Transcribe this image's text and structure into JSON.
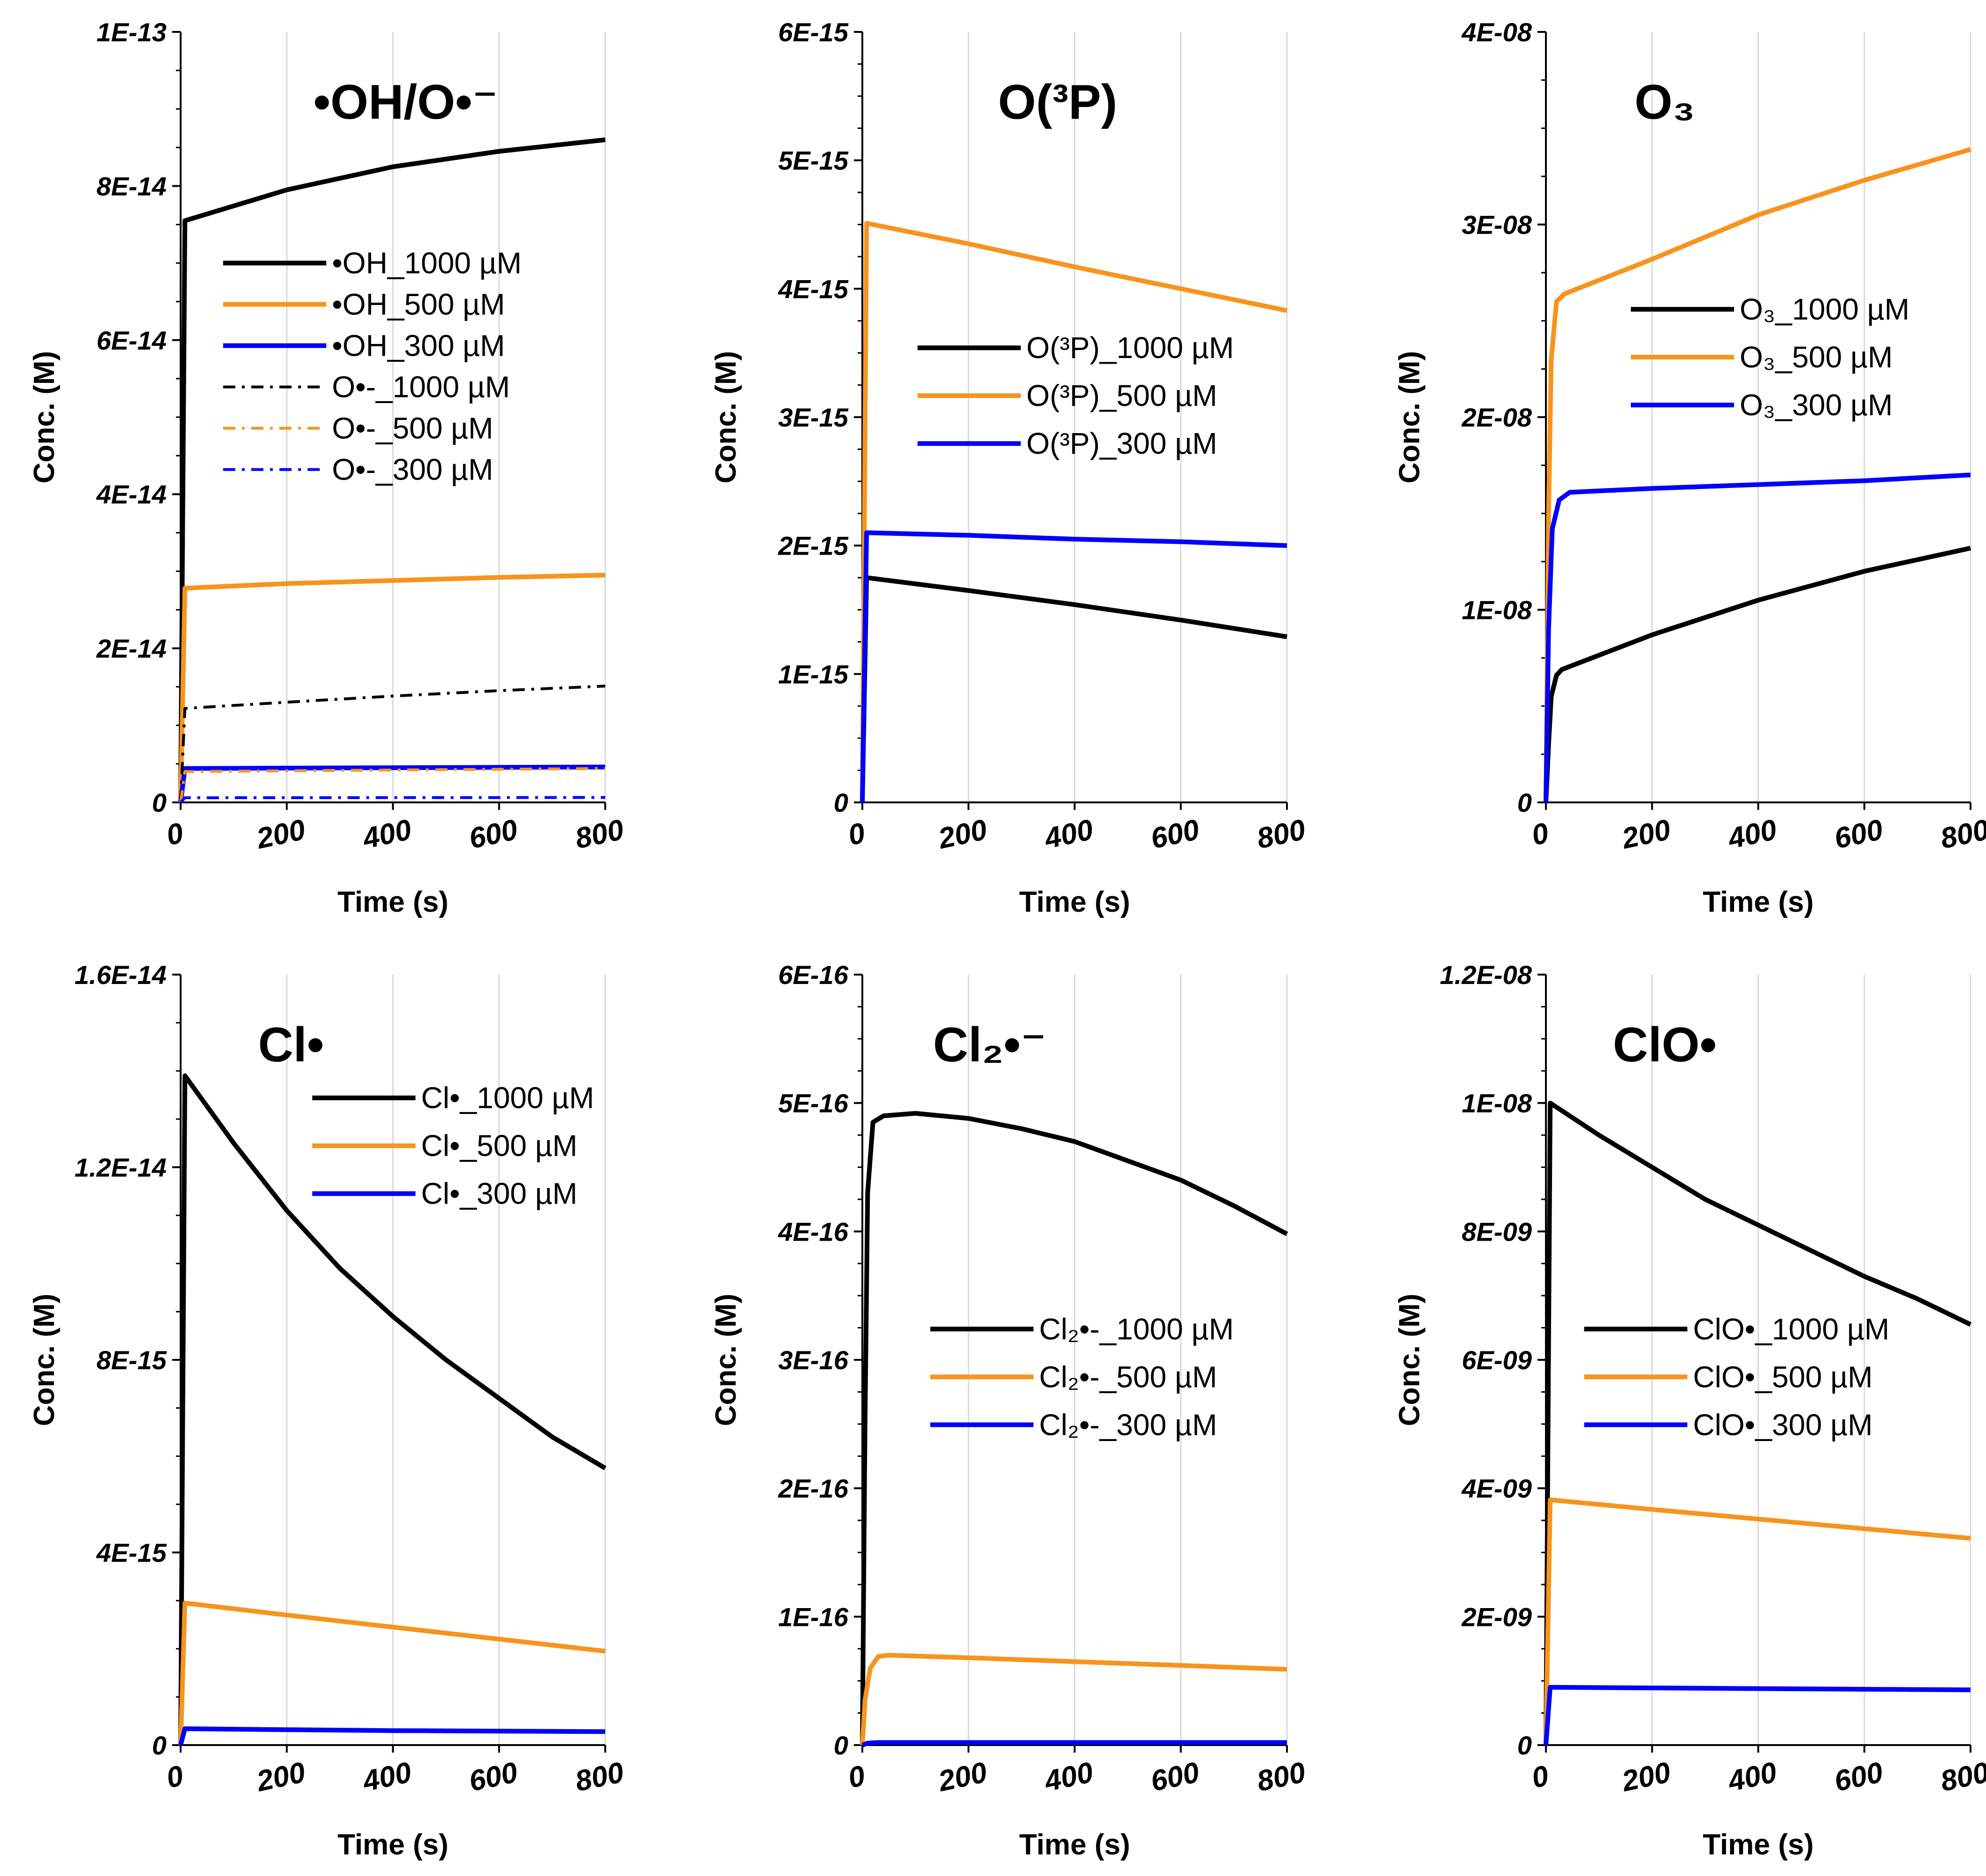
{
  "chart_data": [
    {
      "type": "line",
      "panel": "top-left",
      "title": "•OH/O•⁻",
      "xlabel": "Time (s)",
      "ylabel": "Conc. (M)",
      "xlim": [
        0,
        800
      ],
      "ylim": [
        0,
        1e-13
      ],
      "xticks": [
        0,
        200,
        400,
        600,
        800
      ],
      "xtick_labels": [
        "0",
        "200",
        "400",
        "600",
        "800"
      ],
      "yticks": [
        0,
        2e-14,
        4e-14,
        6e-14,
        8e-14,
        1e-13
      ],
      "ytick_labels": [
        "0",
        "2E-14",
        "4E-14",
        "6E-14",
        "8E-14",
        "1E-13"
      ],
      "grid": "vertical",
      "legend_position": "top-left",
      "series": [
        {
          "name": "•OH_1000 µM",
          "color": "#000000",
          "dash": "solid",
          "x": [
            0,
            8,
            200,
            400,
            600,
            800
          ],
          "y": [
            0,
            7.55e-14,
            7.95e-14,
            8.25e-14,
            8.45e-14,
            8.6e-14
          ]
        },
        {
          "name": "•OH_500 µM",
          "color": "#F7941D",
          "dash": "solid",
          "x": [
            0,
            8,
            200,
            400,
            600,
            800
          ],
          "y": [
            0,
            2.78e-14,
            2.84e-14,
            2.88e-14,
            2.92e-14,
            2.95e-14
          ]
        },
        {
          "name": "•OH_300 µM",
          "color": "#0000FF",
          "dash": "solid",
          "x": [
            0,
            8,
            200,
            400,
            600,
            800
          ],
          "y": [
            0,
            4.4e-15,
            4.45e-15,
            4.5e-15,
            4.55e-15,
            4.6e-15
          ]
        },
        {
          "name": "O•-_1000 µM",
          "color": "#000000",
          "dash": "dashdot",
          "x": [
            0,
            8,
            200,
            400,
            600,
            800
          ],
          "y": [
            0,
            1.22e-14,
            1.3e-14,
            1.38e-14,
            1.45e-14,
            1.51e-14
          ]
        },
        {
          "name": "O•-_500 µM",
          "color": "#F7941D",
          "dash": "dashdot",
          "x": [
            0,
            8,
            200,
            400,
            600,
            800
          ],
          "y": [
            0,
            4e-15,
            4.1e-15,
            4.2e-15,
            4.3e-15,
            4.4e-15
          ]
        },
        {
          "name": "O•-_300 µM",
          "color": "#0000FF",
          "dash": "dashdot",
          "x": [
            0,
            8,
            200,
            400,
            600,
            800
          ],
          "y": [
            0,
            6e-16,
            6.1e-16,
            6.2e-16,
            6.3e-16,
            6.4e-16
          ]
        }
      ]
    },
    {
      "type": "line",
      "panel": "top-middle",
      "title": "O(³P)",
      "xlabel": "Time (s)",
      "ylabel": "Conc. (M)",
      "xlim": [
        0,
        800
      ],
      "ylim": [
        0,
        6e-15
      ],
      "xticks": [
        0,
        200,
        400,
        600,
        800
      ],
      "xtick_labels": [
        "0",
        "200",
        "400",
        "600",
        "800"
      ],
      "yticks": [
        0,
        1e-15,
        2e-15,
        3e-15,
        4e-15,
        5e-15,
        6e-15
      ],
      "ytick_labels": [
        "0",
        "1E-15",
        "2E-15",
        "3E-15",
        "4E-15",
        "5E-15",
        "6E-15"
      ],
      "grid": "vertical",
      "legend_position": "center",
      "series": [
        {
          "name": "O(³P)_1000 µM",
          "color": "#000000",
          "dash": "solid",
          "x": [
            0,
            8,
            200,
            400,
            600,
            800
          ],
          "y": [
            0,
            1.75e-15,
            1.65e-15,
            1.54e-15,
            1.42e-15,
            1.29e-15
          ]
        },
        {
          "name": "O(³P)_500 µM",
          "color": "#F7941D",
          "dash": "solid",
          "x": [
            0,
            8,
            200,
            400,
            600,
            800
          ],
          "y": [
            0,
            4.51e-15,
            4.35e-15,
            4.17e-15,
            4e-15,
            3.83e-15
          ]
        },
        {
          "name": "O(³P)_300 µM",
          "color": "#0000FF",
          "dash": "solid",
          "x": [
            0,
            8,
            200,
            400,
            600,
            800
          ],
          "y": [
            0,
            2.1e-15,
            2.08e-15,
            2.05e-15,
            2.03e-15,
            2e-15
          ]
        }
      ]
    },
    {
      "type": "line",
      "panel": "top-right",
      "title": "O₃",
      "xlabel": "Time (s)",
      "ylabel": "Conc. (M)",
      "xlim": [
        0,
        800
      ],
      "ylim": [
        0,
        4e-08
      ],
      "xticks": [
        0,
        200,
        400,
        600,
        800
      ],
      "xtick_labels": [
        "0",
        "200",
        "400",
        "600",
        "800"
      ],
      "yticks": [
        0,
        1e-08,
        2e-08,
        3e-08,
        4e-08
      ],
      "ytick_labels": [
        "0",
        "1E-08",
        "2E-08",
        "3E-08",
        "4E-08"
      ],
      "grid": "vertical",
      "legend_position": "top-center",
      "series": [
        {
          "name": "O₃_1000 µM",
          "color": "#000000",
          "dash": "solid",
          "x": [
            0,
            5,
            10,
            20,
            30,
            200,
            400,
            600,
            800
          ],
          "y": [
            0,
            3e-09,
            5.5e-09,
            6.6e-09,
            6.9e-09,
            8.7e-09,
            1.05e-08,
            1.2e-08,
            1.32e-08
          ]
        },
        {
          "name": "O₃_500 µM",
          "color": "#F7941D",
          "dash": "solid",
          "x": [
            0,
            5,
            10,
            20,
            35,
            200,
            400,
            600,
            800
          ],
          "y": [
            0,
            1.5e-08,
            2.3e-08,
            2.6e-08,
            2.64e-08,
            2.82e-08,
            3.05e-08,
            3.23e-08,
            3.39e-08
          ]
        },
        {
          "name": "O₃_300 µM",
          "color": "#0000FF",
          "dash": "solid",
          "x": [
            0,
            5,
            12,
            25,
            45,
            200,
            400,
            600,
            800
          ],
          "y": [
            0,
            9e-09,
            1.42e-08,
            1.57e-08,
            1.61e-08,
            1.63e-08,
            1.65e-08,
            1.67e-08,
            1.7e-08
          ]
        }
      ]
    },
    {
      "type": "line",
      "panel": "bottom-left",
      "title": "Cl•",
      "xlabel": "Time (s)",
      "ylabel": "Conc. (M)",
      "xlim": [
        0,
        800
      ],
      "ylim": [
        0,
        1.6e-14
      ],
      "xticks": [
        0,
        200,
        400,
        600,
        800
      ],
      "xtick_labels": [
        "0",
        "200",
        "400",
        "600",
        "800"
      ],
      "yticks": [
        0,
        4e-15,
        8e-15,
        1.2e-14,
        1.6e-14
      ],
      "ytick_labels": [
        "0",
        "4E-15",
        "8E-15",
        "1.2E-14",
        "1.6E-14"
      ],
      "grid": "vertical",
      "legend_position": "top-right",
      "series": [
        {
          "name": "Cl•_1000 µM",
          "color": "#000000",
          "dash": "solid",
          "x": [
            0,
            8,
            100,
            200,
            300,
            400,
            500,
            600,
            700,
            800
          ],
          "y": [
            0,
            1.39e-14,
            1.25e-14,
            1.11e-14,
            9.9e-15,
            8.9e-15,
            8e-15,
            7.2e-15,
            6.4e-15,
            5.75e-15
          ]
        },
        {
          "name": "Cl•_500 µM",
          "color": "#F7941D",
          "dash": "solid",
          "x": [
            0,
            8,
            200,
            400,
            600,
            800
          ],
          "y": [
            0,
            2.95e-15,
            2.7e-15,
            2.45e-15,
            2.2e-15,
            1.95e-15
          ]
        },
        {
          "name": "Cl•_300 µM",
          "color": "#0000FF",
          "dash": "solid",
          "x": [
            0,
            8,
            200,
            400,
            600,
            800
          ],
          "y": [
            0,
            3.4e-16,
            3.2e-16,
            3e-16,
            2.9e-16,
            2.8e-16
          ]
        }
      ]
    },
    {
      "type": "line",
      "panel": "bottom-middle",
      "title": "Cl₂•⁻",
      "xlabel": "Time (s)",
      "ylabel": "Conc. (M)",
      "xlim": [
        0,
        800
      ],
      "ylim": [
        0,
        6e-16
      ],
      "xticks": [
        0,
        200,
        400,
        600,
        800
      ],
      "xtick_labels": [
        "0",
        "200",
        "400",
        "600",
        "800"
      ],
      "yticks": [
        0,
        1e-16,
        2e-16,
        3e-16,
        4e-16,
        5e-16,
        6e-16
      ],
      "ytick_labels": [
        "0",
        "1E-16",
        "2E-16",
        "3E-16",
        "4E-16",
        "5E-16",
        "6E-16"
      ],
      "grid": "vertical",
      "legend_position": "center",
      "series": [
        {
          "name": "Cl₂•-_1000 µM",
          "color": "#000000",
          "dash": "solid",
          "x": [
            0,
            5,
            10,
            20,
            40,
            100,
            200,
            300,
            400,
            500,
            600,
            700,
            800
          ],
          "y": [
            0,
            2.5e-16,
            4.3e-16,
            4.85e-16,
            4.9e-16,
            4.92e-16,
            4.88e-16,
            4.8e-16,
            4.7e-16,
            4.55e-16,
            4.4e-16,
            4.2e-16,
            3.98e-16
          ]
        },
        {
          "name": "Cl₂•-_500 µM",
          "color": "#F7941D",
          "dash": "solid",
          "x": [
            0,
            5,
            15,
            30,
            50,
            200,
            400,
            600,
            800
          ],
          "y": [
            0,
            3.5e-17,
            6e-17,
            6.9e-17,
            7e-17,
            6.8e-17,
            6.5e-17,
            6.2e-17,
            5.9e-17
          ]
        },
        {
          "name": "Cl₂•-_300 µM",
          "color": "#0000FF",
          "dash": "solid",
          "x": [
            0,
            10,
            30,
            200,
            400,
            600,
            800
          ],
          "y": [
            0,
            1.5e-18,
            2e-18,
            2e-18,
            2e-18,
            2e-18,
            2e-18
          ]
        }
      ]
    },
    {
      "type": "line",
      "panel": "bottom-right",
      "title": "ClO•",
      "xlabel": "Time (s)",
      "ylabel": "Conc. (M)",
      "xlim": [
        0,
        800
      ],
      "ylim": [
        0,
        1.2e-08
      ],
      "xticks": [
        0,
        200,
        400,
        600,
        800
      ],
      "xtick_labels": [
        "0",
        "200",
        "400",
        "600",
        "800"
      ],
      "yticks": [
        0,
        2e-09,
        4e-09,
        6e-09,
        8e-09,
        1e-08,
        1.2e-08
      ],
      "ytick_labels": [
        "0",
        "2E-09",
        "4E-09",
        "6E-09",
        "8E-09",
        "1E-08",
        "1.2E-08"
      ],
      "grid": "vertical",
      "legend_position": "center",
      "series": [
        {
          "name": "ClO•_1000 µM",
          "color": "#000000",
          "dash": "solid",
          "x": [
            0,
            8,
            100,
            200,
            300,
            400,
            500,
            600,
            700,
            800
          ],
          "y": [
            0,
            1e-08,
            9.5e-09,
            9e-09,
            8.5e-09,
            8.1e-09,
            7.7e-09,
            7.3e-09,
            6.95e-09,
            6.55e-09
          ]
        },
        {
          "name": "ClO•_500 µM",
          "color": "#F7941D",
          "dash": "solid",
          "x": [
            0,
            8,
            200,
            400,
            600,
            800
          ],
          "y": [
            0,
            3.82e-09,
            3.67e-09,
            3.52e-09,
            3.37e-09,
            3.22e-09
          ]
        },
        {
          "name": "ClO•_300 µM",
          "color": "#0000FF",
          "dash": "solid",
          "x": [
            0,
            8,
            200,
            400,
            600,
            800
          ],
          "y": [
            0,
            9e-10,
            8.9e-10,
            8.8e-10,
            8.7e-10,
            8.6e-10
          ]
        }
      ]
    }
  ]
}
